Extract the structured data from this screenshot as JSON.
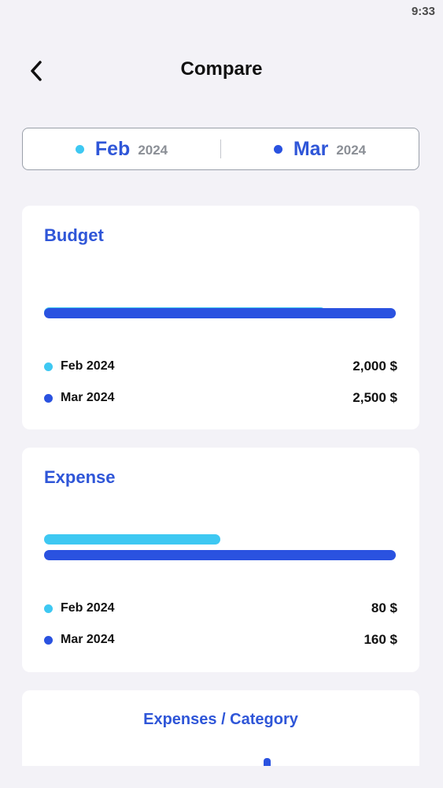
{
  "status": {
    "time": "9:33"
  },
  "header": {
    "title": "Compare"
  },
  "colors": {
    "feb": "#3ec8f2",
    "mar": "#2a52e0",
    "accent": "#2f56d8"
  },
  "selector": {
    "left": {
      "month": "Feb",
      "year": "2024"
    },
    "right": {
      "month": "Mar",
      "year": "2024"
    }
  },
  "budget": {
    "title": "Budget",
    "rows": [
      {
        "label": "Feb 2024",
        "value": "2,000 $",
        "amount": 2000
      },
      {
        "label": "Mar 2024",
        "value": "2,500 $",
        "amount": 2500
      }
    ]
  },
  "expense": {
    "title": "Expense",
    "rows": [
      {
        "label": "Feb 2024",
        "value": "80 $",
        "amount": 80
      },
      {
        "label": "Mar 2024",
        "value": "160 $",
        "amount": 160
      }
    ]
  },
  "category": {
    "title": "Expenses / Category"
  }
}
